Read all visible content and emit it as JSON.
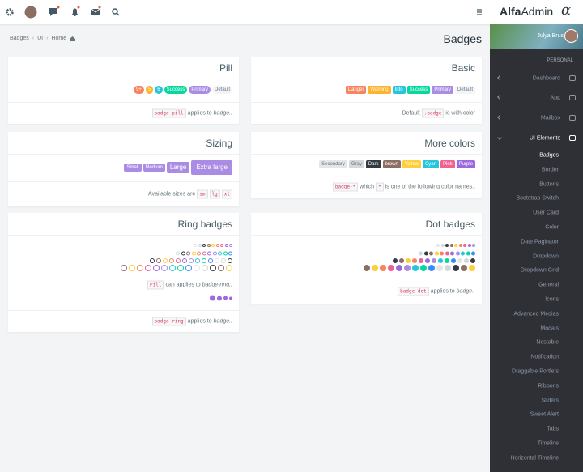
{
  "topbar": {
    "logo_bold": "Alfa",
    "logo_light": "Admin",
    "logo_mark": "α"
  },
  "breadcrumb": [
    "Badges",
    "UI",
    "Home"
  ],
  "page_title": "Badges",
  "cards": [
    {
      "title": "Pill",
      "badges": [
        {
          "text": "9+",
          "color": "#f7845e"
        },
        {
          "text": "5",
          "color": "#ffb22b"
        },
        {
          "text": "6",
          "color": "#26c6da"
        },
        {
          "text": "Success",
          "color": "#06d79c"
        },
        {
          "text": "Primary",
          "color": "#ab8ce4"
        },
        {
          "text": "Default",
          "color": "#f2f4f8"
        }
      ],
      "footnotes": [
        [
          {
            "code": "badge-pill"
          },
          {
            "text": "applies to"
          },
          {
            "em": "badge.."
          }
        ]
      ]
    },
    {
      "title": "Basic",
      "badges": [
        {
          "text": "Danger",
          "color": "#f7845e"
        },
        {
          "text": "Warning",
          "color": "#ffb22b"
        },
        {
          "text": "Info",
          "color": "#26c6da"
        },
        {
          "text": "Success",
          "color": "#06d79c"
        },
        {
          "text": "Primary",
          "color": "#ab8ce4"
        },
        {
          "text": "Default",
          "color": "#f2f4f8"
        }
      ],
      "footnotes": [
        [
          {
            "text": "Default"
          },
          {
            "code": ".badge"
          },
          {
            "text": "is with color"
          }
        ]
      ]
    },
    {
      "title": "Sizing",
      "badges": [
        {
          "text": "Small",
          "color": "#ab8ce4"
        },
        {
          "text": "Medium",
          "color": "#ab8ce4"
        },
        {
          "text": "Large",
          "color": "#ab8ce4"
        },
        {
          "text": "Extra large",
          "color": "#ab8ce4"
        }
      ],
      "footnotes": [
        [
          {
            "text": "Available sizes are"
          },
          {
            "code": "sm"
          },
          {
            "code": "lg"
          },
          {
            "code": "xl"
          }
        ]
      ]
    },
    {
      "title": "More colors",
      "badges": [
        {
          "text": "Secondary",
          "color": "#e4e7ea"
        },
        {
          "text": "Gray",
          "color": "#d4d8dc"
        },
        {
          "text": "Dark",
          "color": "#343a40"
        },
        {
          "text": "brown",
          "color": "#8d6e63"
        },
        {
          "text": "Yellow",
          "color": "#ffcf3b"
        },
        {
          "text": "Cyan",
          "color": "#26c6da"
        },
        {
          "text": "Pink",
          "color": "#f06292"
        },
        {
          "text": "Purple",
          "color": "#9c6ade"
        }
      ],
      "footnotes": [
        [
          {
            "code": "badge-*"
          },
          {
            "text": "which"
          },
          {
            "code": "*"
          },
          {
            "text": "is one of the following color names.."
          }
        ]
      ]
    },
    {
      "title": "Ring badges",
      "badges": [],
      "footnotes": [
        [
          {
            "code": "Pill"
          },
          {
            "text": "can applies to"
          },
          {
            "em": "badge-ring.."
          }
        ],
        [
          {
            "code": "badge-ring"
          },
          {
            "text": "applies to"
          },
          {
            "em": "badge.."
          }
        ]
      ]
    },
    {
      "title": "Dot badges",
      "badges": [],
      "footnotes": [
        [
          {
            "code": "badge-dot"
          },
          {
            "text": "applies to"
          },
          {
            "em": "badge.."
          }
        ]
      ]
    }
  ],
  "sidebar": {
    "user": "Julya Brus",
    "section": "PERSONAL",
    "items": [
      "Dashboard",
      "App",
      "Mailbox",
      "UI Elements"
    ],
    "subitems": [
      "Badges",
      "Border",
      "Buttons",
      "Bootstrap Switch",
      "User Card",
      "Color",
      "Date Paginator",
      "Dropdown",
      "Dropdown Grid",
      "General",
      "Icons",
      "Advanced Medias",
      "Modals",
      "Nestable",
      "Notification",
      "Draggable Portlets",
      "Ribbons",
      "Sliders",
      "Sweet Alert",
      "Tabs",
      "Timeline",
      "Horizontal Timeline"
    ]
  }
}
